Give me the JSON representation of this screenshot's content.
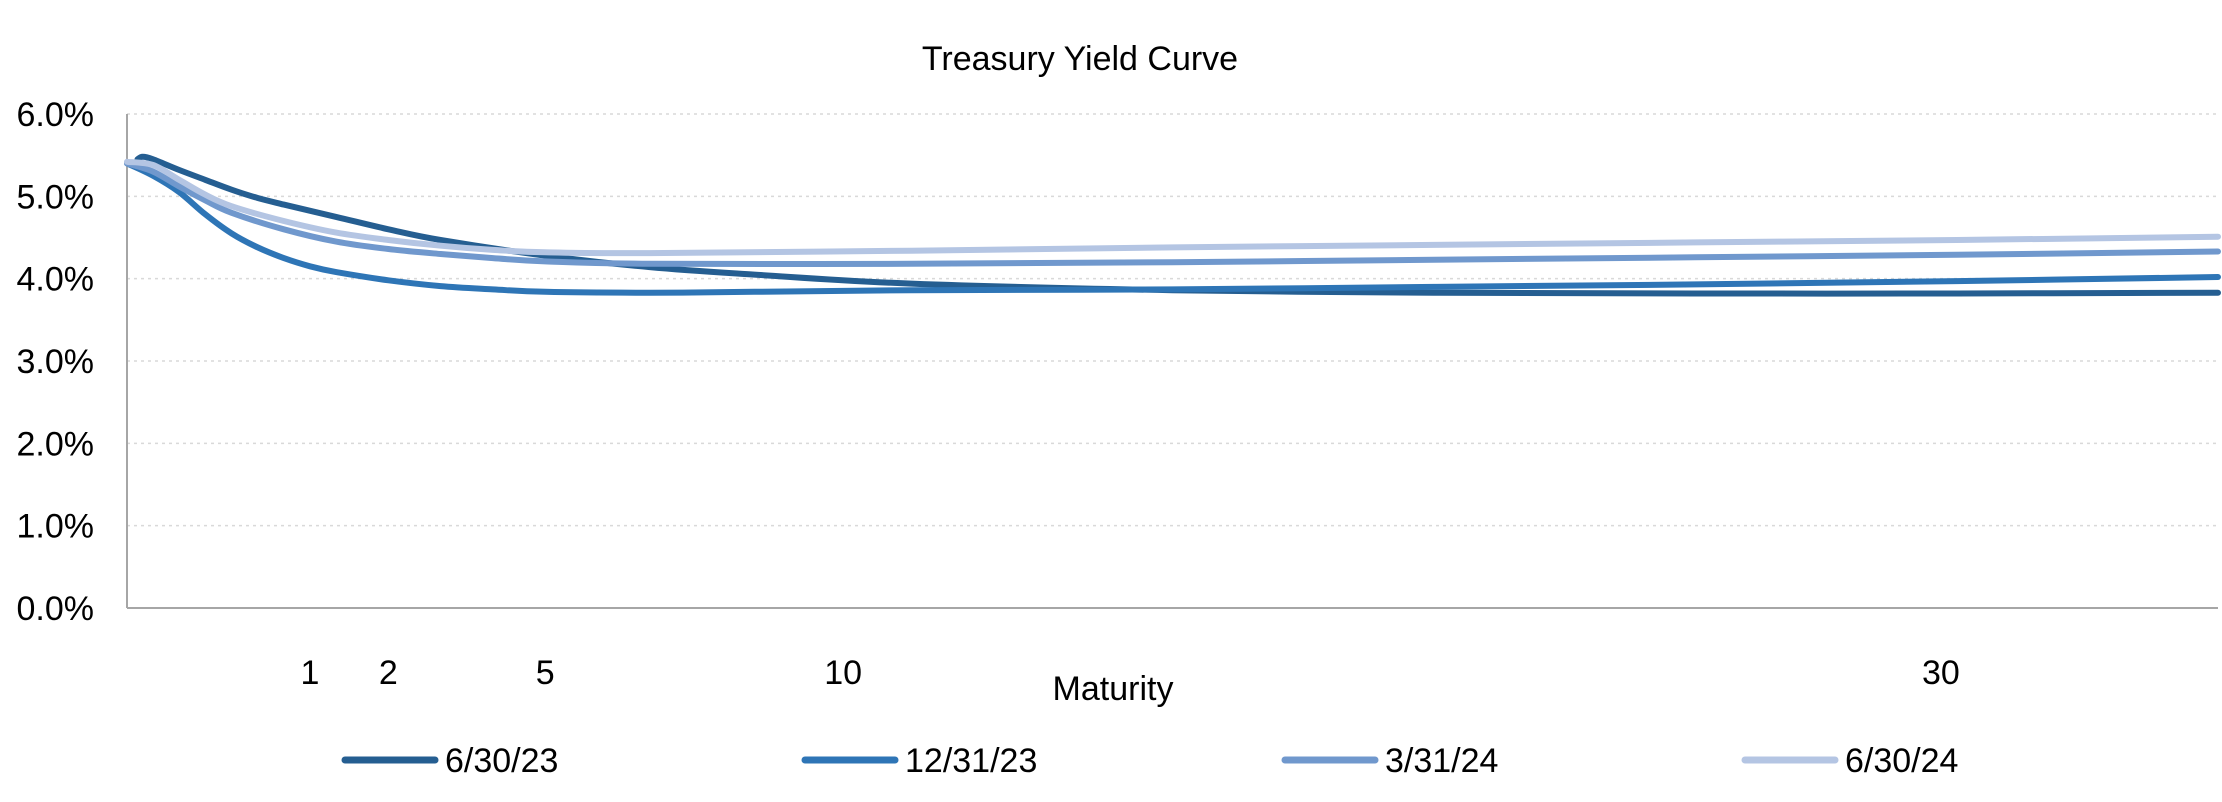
{
  "chart_data": {
    "type": "line",
    "title": "Treasury Yield Curve",
    "xlabel": "Maturity",
    "ylabel": "",
    "ylim": [
      0,
      6
    ],
    "xlim": [
      0,
      40
    ],
    "y_ticks": [
      "0.0%",
      "1.0%",
      "2.0%",
      "3.0%",
      "4.0%",
      "5.0%",
      "6.0%"
    ],
    "x_ticks": [
      {
        "label": "1",
        "value": 3.5
      },
      {
        "label": "2",
        "value": 5
      },
      {
        "label": "5",
        "value": 8
      },
      {
        "label": "10",
        "value": 13.7
      },
      {
        "label": "30",
        "value": 34.7
      }
    ],
    "grid": "horizontal dotted",
    "legend_position": "bottom",
    "series": [
      {
        "name": "6/30/23",
        "color": "#255e91",
        "x": [
          0.2,
          0.3,
          0.5,
          1,
          1.5,
          2,
          2.5,
          3,
          4,
          5,
          6,
          8,
          10,
          12,
          15,
          20,
          25,
          30,
          35,
          40
        ],
        "y": [
          5.45,
          5.48,
          5.45,
          5.32,
          5.2,
          5.08,
          4.98,
          4.9,
          4.75,
          4.6,
          4.47,
          4.28,
          4.14,
          4.05,
          3.94,
          3.86,
          3.83,
          3.82,
          3.82,
          3.83
        ]
      },
      {
        "name": "12/31/23",
        "color": "#2e75b6",
        "x": [
          0,
          0.5,
          1,
          1.5,
          2,
          2.5,
          3,
          3.5,
          4,
          5,
          6,
          7,
          8,
          10,
          12,
          15,
          20,
          25,
          30,
          35,
          40
        ],
        "y": [
          5.4,
          5.25,
          5.05,
          4.78,
          4.55,
          4.38,
          4.25,
          4.15,
          4.08,
          3.98,
          3.91,
          3.87,
          3.84,
          3.83,
          3.84,
          3.86,
          3.87,
          3.9,
          3.93,
          3.97,
          4.02
        ]
      },
      {
        "name": "3/31/24",
        "color": "#7098cd",
        "x": [
          0,
          0.5,
          1,
          1.5,
          2,
          3,
          4,
          5,
          6,
          7,
          8,
          10,
          15,
          20,
          25,
          30,
          35,
          40
        ],
        "y": [
          5.4,
          5.3,
          5.12,
          4.95,
          4.8,
          4.6,
          4.45,
          4.36,
          4.3,
          4.25,
          4.21,
          4.18,
          4.18,
          4.2,
          4.23,
          4.26,
          4.29,
          4.33
        ]
      },
      {
        "name": "6/30/24",
        "color": "#b4c5e3",
        "x": [
          0,
          0.5,
          1,
          1.5,
          2,
          3,
          4,
          5,
          6,
          7,
          8,
          10,
          15,
          20,
          25,
          30,
          35,
          40
        ],
        "y": [
          5.42,
          5.38,
          5.2,
          5.02,
          4.88,
          4.7,
          4.56,
          4.47,
          4.4,
          4.35,
          4.32,
          4.31,
          4.34,
          4.38,
          4.41,
          4.44,
          4.47,
          4.51
        ]
      }
    ]
  }
}
